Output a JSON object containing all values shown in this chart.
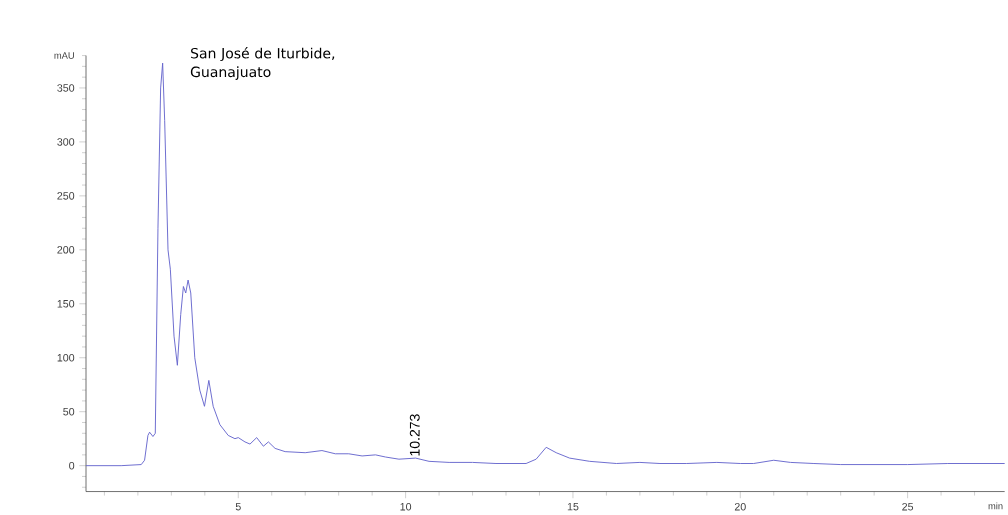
{
  "chart_data": {
    "type": "line",
    "title": "San José de Iturbide, Guanajuato",
    "xlabel": "min",
    "ylabel": "mAU",
    "grid": false,
    "marker": "none",
    "line_style": "solid",
    "xlim": [
      0.45,
      27.9
    ],
    "ylim": [
      -24,
      380
    ],
    "xticks": [
      {
        "value": 1,
        "label": null
      },
      {
        "value": 2,
        "label": null
      },
      {
        "value": 3,
        "label": null
      },
      {
        "value": 4,
        "label": null
      },
      5,
      {
        "value": 6,
        "label": null
      },
      {
        "value": 7,
        "label": null
      },
      {
        "value": 8,
        "label": null
      },
      {
        "value": 9,
        "label": null
      },
      10,
      {
        "value": 11,
        "label": null
      },
      {
        "value": 12,
        "label": null
      },
      {
        "value": 13,
        "label": null
      },
      {
        "value": 14,
        "label": null
      },
      15,
      {
        "value": 16,
        "label": null
      },
      {
        "value": 17,
        "label": null
      },
      {
        "value": 18,
        "label": null
      },
      {
        "value": 19,
        "label": null
      },
      20,
      {
        "value": 21,
        "label": null
      },
      {
        "value": 22,
        "label": null
      },
      {
        "value": 23,
        "label": null
      },
      {
        "value": 24,
        "label": null
      },
      25,
      {
        "value": 26,
        "label": null
      },
      {
        "value": 27,
        "label": null
      }
    ],
    "yticks": [
      {
        "value": -20,
        "label": null
      },
      {
        "value": -10,
        "label": null
      },
      0,
      {
        "value": 10,
        "label": null
      },
      {
        "value": 20,
        "label": null
      },
      {
        "value": 30,
        "label": null
      },
      {
        "value": 40,
        "label": null
      },
      50,
      {
        "value": 60,
        "label": null
      },
      {
        "value": 70,
        "label": null
      },
      {
        "value": 80,
        "label": null
      },
      {
        "value": 90,
        "label": null
      },
      100,
      {
        "value": 110,
        "label": null
      },
      {
        "value": 120,
        "label": null
      },
      {
        "value": 130,
        "label": null
      },
      {
        "value": 140,
        "label": null
      },
      150,
      {
        "value": 160,
        "label": null
      },
      {
        "value": 170,
        "label": null
      },
      {
        "value": 180,
        "label": null
      },
      {
        "value": 190,
        "label": null
      },
      200,
      {
        "value": 210,
        "label": null
      },
      {
        "value": 220,
        "label": null
      },
      {
        "value": 230,
        "label": null
      },
      {
        "value": 240,
        "label": null
      },
      250,
      {
        "value": 260,
        "label": null
      },
      {
        "value": 270,
        "label": null
      },
      {
        "value": 280,
        "label": null
      },
      {
        "value": 290,
        "label": null
      },
      300,
      {
        "value": 310,
        "label": null
      },
      {
        "value": 320,
        "label": null
      },
      {
        "value": 330,
        "label": null
      },
      {
        "value": 340,
        "label": null
      },
      350,
      {
        "value": 360,
        "label": null
      },
      {
        "value": 370,
        "label": null
      },
      {
        "value": 380,
        "label": null
      }
    ],
    "annotations": [
      {
        "text": "10.273",
        "x": 10.273,
        "y": 7
      }
    ],
    "series": [
      {
        "color": "#6464cc",
        "x": [
          0.45,
          1.5,
          2.1,
          2.2,
          2.3,
          2.35,
          2.45,
          2.52,
          2.6,
          2.68,
          2.74,
          2.8,
          2.9,
          2.97,
          3.08,
          3.18,
          3.28,
          3.36,
          3.43,
          3.5,
          3.58,
          3.7,
          3.85,
          3.99,
          4.12,
          4.25,
          4.45,
          4.7,
          4.9,
          5.0,
          5.2,
          5.35,
          5.55,
          5.75,
          5.9,
          6.1,
          6.4,
          7.0,
          7.5,
          7.9,
          8.3,
          8.7,
          9.1,
          9.4,
          9.8,
          10.3,
          10.7,
          11.3,
          12,
          12.7,
          13.6,
          13.9,
          14.2,
          14.5,
          14.9,
          15.5,
          16.3,
          17,
          17.6,
          18.4,
          19.3,
          20.0,
          20.4,
          21.0,
          21.5,
          22.2,
          23,
          24,
          25,
          26.2,
          27.9
        ],
        "values": [
          0,
          0,
          1,
          5,
          28,
          31,
          27,
          30,
          220,
          350,
          373,
          320,
          200,
          182,
          120,
          93,
          140,
          166,
          160,
          172,
          160,
          100,
          70,
          55,
          79,
          55,
          38,
          28,
          25,
          26,
          22,
          20,
          26,
          18,
          22,
          16,
          13,
          12,
          14,
          11,
          11,
          9,
          10,
          8,
          6,
          7,
          4,
          3,
          3,
          2,
          2,
          6,
          17,
          12,
          7,
          4,
          2,
          3,
          2,
          2,
          3,
          2,
          2,
          5,
          3,
          2,
          1,
          1,
          1,
          2,
          2
        ]
      }
    ]
  }
}
